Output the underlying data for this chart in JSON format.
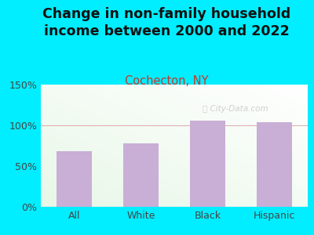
{
  "title": "Change in non-family household\nincome between 2000 and 2022",
  "subtitle": "Cochecton, NY",
  "categories": [
    "All",
    "White",
    "Black",
    "Hispanic"
  ],
  "values": [
    68,
    78,
    106,
    104
  ],
  "bar_color": "#c9aed6",
  "title_fontsize": 12.5,
  "subtitle_fontsize": 10.5,
  "subtitle_color": "#c0392b",
  "title_color": "#111111",
  "ylim": [
    0,
    150
  ],
  "yticks": [
    0,
    50,
    100,
    150
  ],
  "ytick_labels": [
    "0%",
    "50%",
    "100%",
    "150%"
  ],
  "bg_outer": "#00eeff",
  "watermark": "City-Data.com",
  "watermark_color": "#aaaaaa",
  "watermark_alpha": 0.55
}
